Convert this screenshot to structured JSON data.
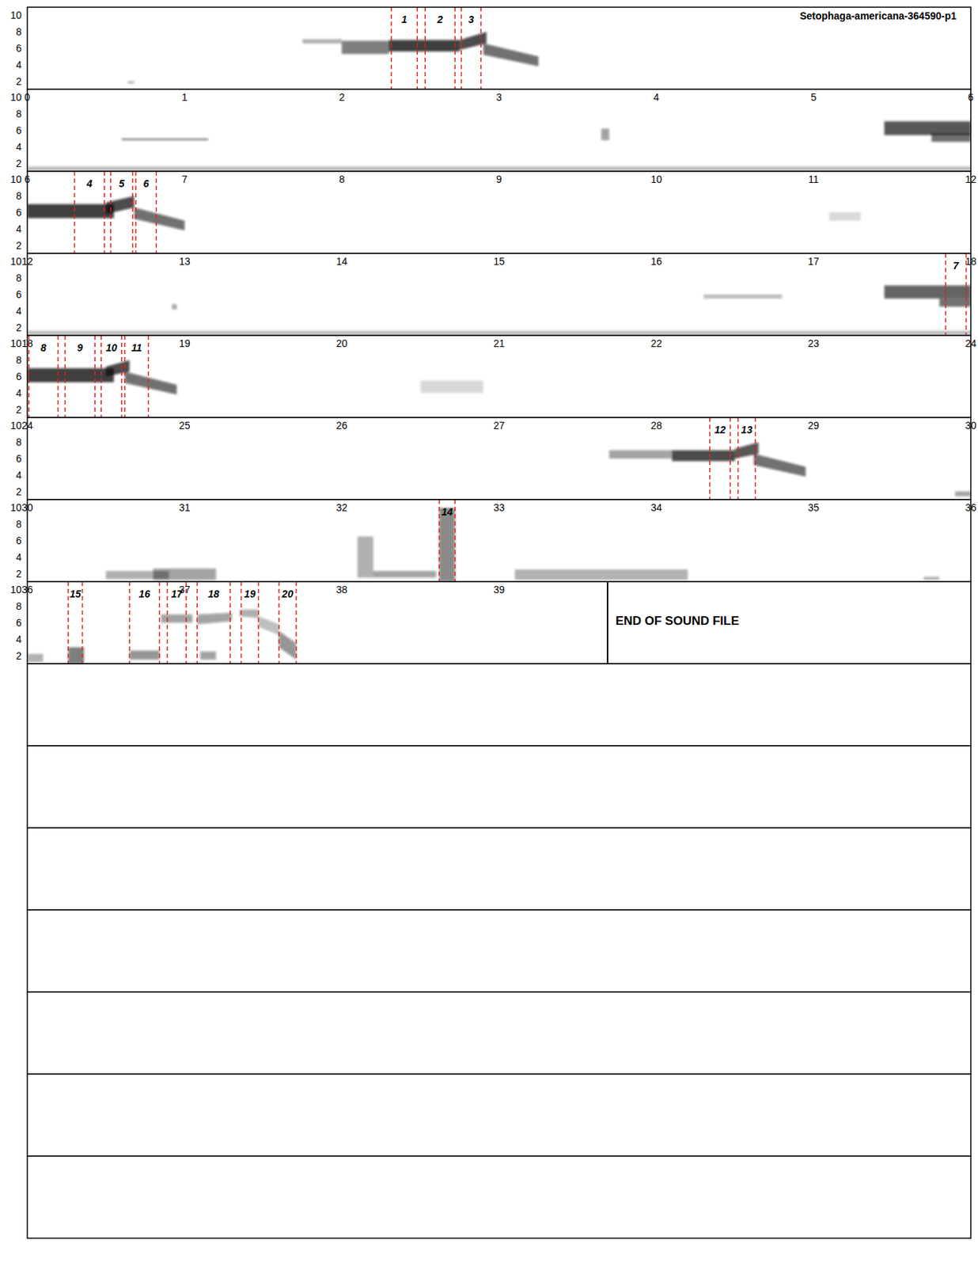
{
  "chart_data": {
    "type": "spectrogram",
    "title": "Setophaga-americana-364590-p1",
    "ylim": [
      1,
      11
    ],
    "yticks": [
      2,
      4,
      6,
      8,
      10
    ],
    "end_label": "END OF SOUND FILE",
    "end_time": 39.69,
    "rows": [
      {
        "xlim": [
          0,
          6
        ],
        "xticks": [],
        "energy": [
          [
            1.75,
            2.0,
            6.6,
            7.1,
            6.6,
            7.1,
            0.35
          ],
          [
            2.0,
            2.3,
            5.3,
            6.9,
            5.3,
            6.9,
            0.55
          ],
          [
            2.3,
            2.75,
            5.6,
            7.0,
            5.6,
            7.0,
            0.8
          ],
          [
            2.75,
            2.92,
            5.8,
            7.0,
            6.6,
            8.0,
            0.75
          ],
          [
            2.9,
            3.25,
            5.2,
            6.6,
            3.8,
            5.0,
            0.6
          ],
          [
            0.64,
            0.68,
            1.7,
            2.0,
            1.7,
            2.0,
            0.3
          ]
        ],
        "segments": [
          {
            "label": "1",
            "start": 2.315,
            "end": 2.48
          },
          {
            "label": "2",
            "start": 2.53,
            "end": 2.72
          },
          {
            "label": "3",
            "start": 2.76,
            "end": 2.885
          }
        ]
      },
      {
        "xlim": [
          0,
          6
        ],
        "xticks": [
          0,
          1,
          2,
          3,
          4,
          5,
          6
        ],
        "energy": [
          [
            0.6,
            1.15,
            4.8,
            5.0,
            4.8,
            5.0,
            0.6
          ],
          [
            3.65,
            3.7,
            4.8,
            6.2,
            4.8,
            6.2,
            0.4
          ],
          [
            5.45,
            6.0,
            5.4,
            7.1,
            5.4,
            7.1,
            0.7
          ],
          [
            5.75,
            6.0,
            4.6,
            5.6,
            4.6,
            5.6,
            0.6
          ],
          [
            0,
            6,
            1.0,
            1.6,
            1.0,
            1.6,
            0.25
          ]
        ],
        "segments": []
      },
      {
        "xlim": [
          6,
          12
        ],
        "xticks": [
          6,
          7,
          8,
          9,
          10,
          11,
          12
        ],
        "energy": [
          [
            6.0,
            6.55,
            5.3,
            7.0,
            5.3,
            7.0,
            0.8
          ],
          [
            6.5,
            6.68,
            5.8,
            7.2,
            6.6,
            8.0,
            0.75
          ],
          [
            6.68,
            7.0,
            5.2,
            6.6,
            3.8,
            5.0,
            0.6
          ],
          [
            11.1,
            11.3,
            5.0,
            6.0,
            5.0,
            6.0,
            0.15
          ]
        ],
        "segments": [
          {
            "label": "4",
            "start": 6.3,
            "end": 6.49
          },
          {
            "label": "5",
            "start": 6.53,
            "end": 6.67
          },
          {
            "label": "6",
            "start": 6.69,
            "end": 6.82
          }
        ]
      },
      {
        "xlim": [
          12,
          18
        ],
        "xticks": [
          12,
          13,
          14,
          15,
          16,
          17,
          18
        ],
        "energy": [
          [
            12,
            18,
            1.0,
            1.6,
            1.0,
            1.6,
            0.25
          ],
          [
            12.92,
            12.95,
            4.2,
            4.8,
            4.2,
            4.8,
            0.4
          ],
          [
            16.3,
            16.8,
            5.5,
            6.0,
            5.5,
            6.0,
            0.25
          ],
          [
            17.45,
            18.0,
            5.5,
            7.1,
            5.5,
            7.1,
            0.65
          ],
          [
            17.8,
            18.0,
            4.5,
            5.5,
            4.5,
            5.5,
            0.6
          ]
        ],
        "segments": [
          {
            "label": "7",
            "start": 17.84,
            "end": 17.97
          }
        ]
      },
      {
        "xlim": [
          18,
          24
        ],
        "xticks": [
          18,
          19,
          20,
          21,
          22,
          23,
          24
        ],
        "energy": [
          [
            18.0,
            18.55,
            5.3,
            7.0,
            5.3,
            7.0,
            0.8
          ],
          [
            18.5,
            18.65,
            6.0,
            7.2,
            6.6,
            8.0,
            0.75
          ],
          [
            18.62,
            18.95,
            5.2,
            6.6,
            3.8,
            5.0,
            0.6
          ],
          [
            20.5,
            20.9,
            4.0,
            5.5,
            4.0,
            5.5,
            0.15
          ]
        ],
        "segments": [
          {
            "label": "8",
            "start": 18.01,
            "end": 18.195
          },
          {
            "label": "9",
            "start": 18.24,
            "end": 18.43
          },
          {
            "label": "10",
            "start": 18.47,
            "end": 18.6
          },
          {
            "label": "11",
            "start": 18.62,
            "end": 18.77
          }
        ]
      },
      {
        "xlim": [
          24,
          30
        ],
        "xticks": [
          24,
          25,
          26,
          27,
          28,
          29,
          30
        ],
        "energy": [
          [
            27.7,
            28.1,
            6.0,
            7.0,
            6.0,
            7.0,
            0.4
          ],
          [
            28.1,
            28.5,
            5.7,
            7.0,
            5.7,
            7.0,
            0.75
          ],
          [
            28.5,
            28.65,
            6.0,
            7.2,
            6.6,
            8.0,
            0.7
          ],
          [
            28.62,
            28.95,
            5.2,
            6.6,
            3.8,
            5.0,
            0.6
          ],
          [
            29.9,
            30.0,
            1.4,
            2.0,
            1.4,
            2.0,
            0.4
          ]
        ],
        "segments": [
          {
            "label": "12",
            "start": 28.34,
            "end": 28.47
          },
          {
            "label": "13",
            "start": 28.52,
            "end": 28.63
          }
        ]
      },
      {
        "xlim": [
          30,
          36
        ],
        "xticks": [
          30,
          31,
          32,
          33,
          34,
          35,
          36
        ],
        "energy": [
          [
            30.5,
            30.9,
            1.3,
            2.3,
            1.3,
            2.3,
            0.35
          ],
          [
            30.8,
            31.2,
            1.2,
            2.6,
            1.2,
            2.6,
            0.4
          ],
          [
            32.1,
            32.2,
            1.5,
            6.5,
            1.5,
            6.5,
            0.35
          ],
          [
            32.2,
            32.6,
            1.5,
            2.3,
            1.5,
            2.3,
            0.4
          ],
          [
            32.62,
            32.72,
            1.0,
            10.0,
            1.0,
            10.0,
            0.5
          ],
          [
            33.1,
            33.8,
            1.2,
            2.5,
            1.2,
            2.5,
            0.3
          ],
          [
            33.8,
            34.2,
            1.2,
            2.5,
            1.2,
            2.5,
            0.3
          ],
          [
            35.7,
            35.8,
            1.2,
            1.6,
            1.2,
            1.6,
            0.3
          ]
        ],
        "segments": [
          {
            "label": "14",
            "start": 32.62,
            "end": 32.72
          }
        ]
      },
      {
        "xlim": [
          36,
          42
        ],
        "xticks": [
          36,
          37,
          38,
          39
        ],
        "energy": [
          [
            36,
            36.1,
            1.2,
            2.2,
            1.2,
            2.2,
            0.3
          ],
          [
            36.26,
            36.36,
            1.0,
            3.0,
            1.0,
            3.0,
            0.55
          ],
          [
            36.65,
            36.84,
            1.5,
            2.6,
            1.5,
            2.6,
            0.45
          ],
          [
            36.85,
            37.05,
            6.0,
            7.0,
            6.0,
            7.0,
            0.4
          ],
          [
            37.08,
            37.3,
            5.8,
            7.0,
            6.2,
            7.2,
            0.4
          ],
          [
            37.1,
            37.2,
            1.5,
            2.5,
            1.5,
            2.5,
            0.4
          ],
          [
            37.35,
            37.47,
            6.8,
            7.6,
            6.6,
            7.6,
            0.35
          ],
          [
            37.47,
            37.6,
            5.5,
            6.8,
            4.5,
            5.8,
            0.25
          ],
          [
            37.6,
            37.71,
            3.0,
            5.0,
            1.5,
            3.5,
            0.45
          ]
        ],
        "segments": [
          {
            "label": "15",
            "start": 36.26,
            "end": 36.35
          },
          {
            "label": "16",
            "start": 36.65,
            "end": 36.84
          },
          {
            "label": "17",
            "start": 36.89,
            "end": 37.01
          },
          {
            "label": "18",
            "start": 37.08,
            "end": 37.29
          },
          {
            "label": "19",
            "start": 37.36,
            "end": 37.47
          },
          {
            "label": "20",
            "start": 37.6,
            "end": 37.71
          }
        ]
      }
    ]
  }
}
